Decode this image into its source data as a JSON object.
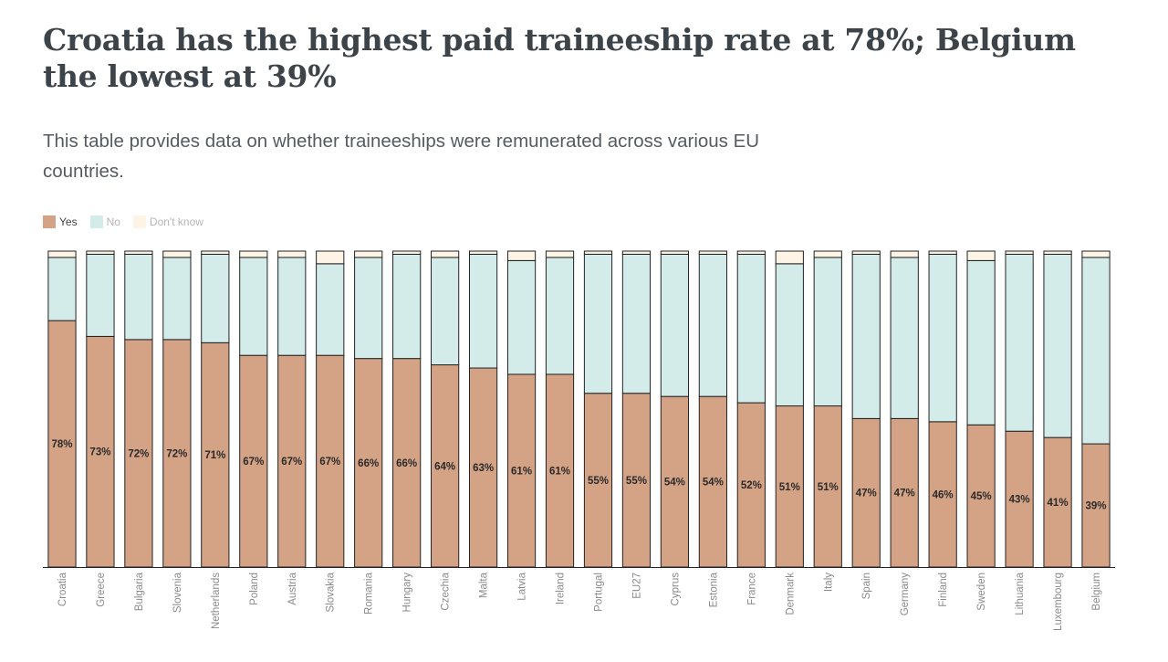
{
  "title": "Croatia has the highest paid traineeship rate at 78%; Belgium the lowest at 39%",
  "subtitle": "This table provides data on whether traineeships were remunerated across various EU countries.",
  "legend": [
    {
      "label": "Yes",
      "color": "#d4a386"
    },
    {
      "label": "No",
      "color": "#d3ecea"
    },
    {
      "label": "Don't know",
      "color": "#fdf4e6"
    }
  ],
  "chart_data": {
    "type": "bar",
    "stacked": true,
    "categories": [
      "Croatia",
      "Greece",
      "Bulgaria",
      "Slovenia",
      "Netherlands",
      "Poland",
      "Austria",
      "Slovakia",
      "Romania",
      "Hungary",
      "Czechia",
      "Malta",
      "Latvia",
      "Ireland",
      "Portugal",
      "EU27",
      "Cyprus",
      "Estonia",
      "France",
      "Denmark",
      "Italy",
      "Spain",
      "Germany",
      "Finland",
      "Sweden",
      "Lithuania",
      "Luxembourg",
      "Belgium"
    ],
    "series": [
      {
        "name": "Yes",
        "color": "#d4a386",
        "values": [
          78,
          73,
          72,
          72,
          71,
          67,
          67,
          67,
          66,
          66,
          64,
          63,
          61,
          61,
          55,
          55,
          54,
          54,
          52,
          51,
          51,
          47,
          47,
          46,
          45,
          43,
          41,
          39
        ]
      },
      {
        "name": "No",
        "color": "#d3ecea",
        "values": [
          20,
          26,
          27,
          26,
          28,
          31,
          31,
          29,
          32,
          33,
          34,
          36,
          36,
          37,
          44,
          44,
          45,
          45,
          47,
          45,
          47,
          52,
          51,
          53,
          52,
          56,
          58,
          59
        ]
      },
      {
        "name": "Don't know",
        "color": "#fdf4e6",
        "values": [
          2,
          1,
          1,
          2,
          1,
          2,
          2,
          4,
          2,
          1,
          2,
          1,
          3,
          2,
          1,
          1,
          1,
          1,
          1,
          4,
          2,
          1,
          2,
          1,
          3,
          1,
          1,
          2
        ]
      }
    ],
    "value_labels": [
      "78%",
      "73%",
      "72%",
      "72%",
      "71%",
      "67%",
      "67%",
      "67%",
      "66%",
      "66%",
      "64%",
      "63%",
      "61%",
      "61%",
      "55%",
      "55%",
      "54%",
      "54%",
      "52%",
      "51%",
      "51%",
      "47%",
      "47%",
      "46%",
      "45%",
      "43%",
      "41%",
      "39%"
    ],
    "ylim": [
      0,
      100
    ],
    "xlabel": "",
    "ylabel": "",
    "legend_position": "top-left"
  }
}
